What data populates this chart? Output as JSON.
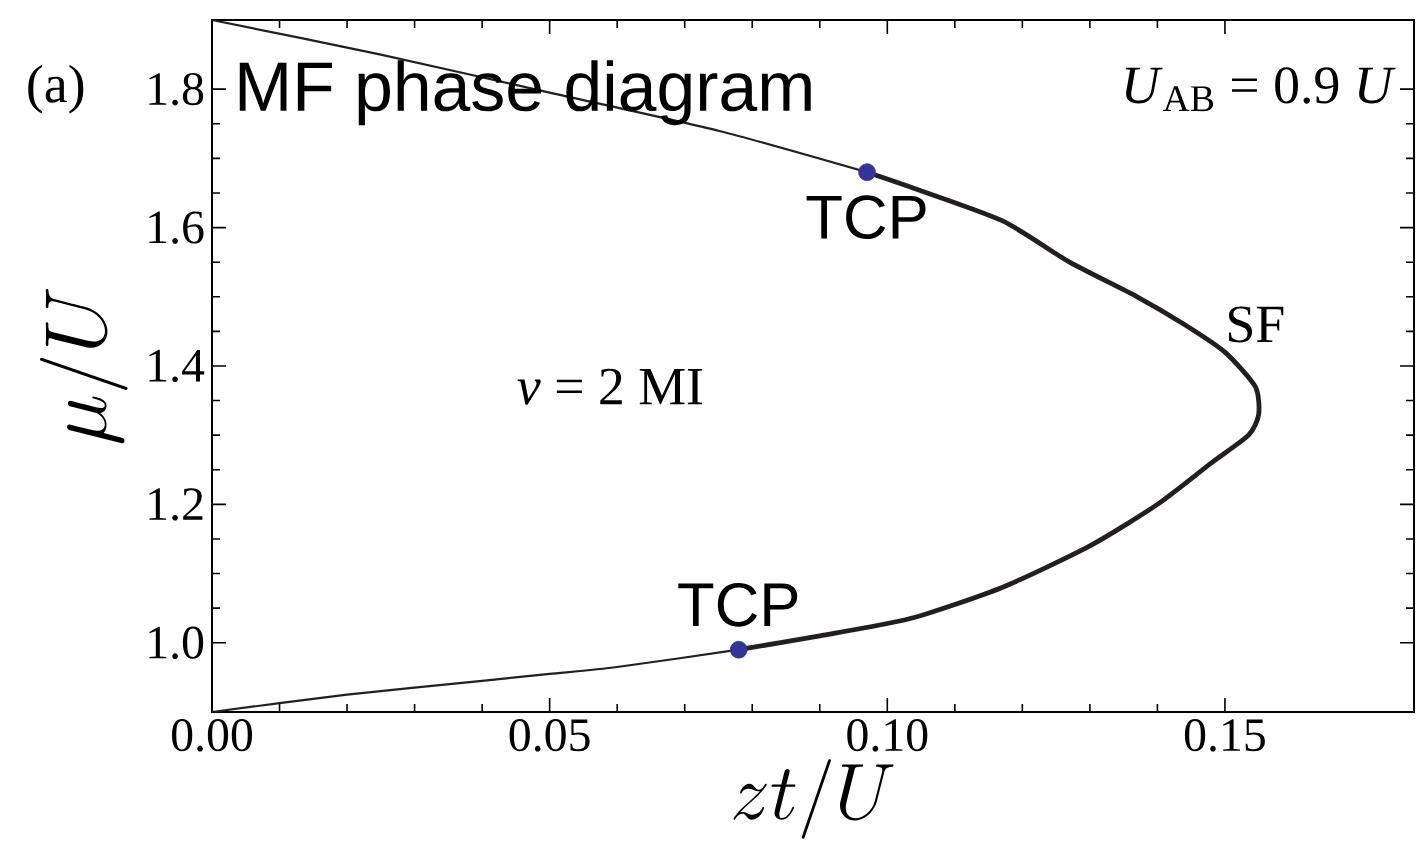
{
  "chart_data": {
    "type": "line",
    "xlabel": "zt/U",
    "ylabel": "\\mu/U",
    "xlim": [
      0,
      0.178
    ],
    "ylim": [
      0.9,
      1.9
    ],
    "xticks": [
      {
        "value": 0,
        "label": "0.00"
      },
      0.05,
      {
        "value": 0.1,
        "label": "0.10"
      },
      0.15
    ],
    "yticks": [
      {
        "value": 1.0,
        "label": "1.0"
      },
      1.2,
      1.4,
      1.6,
      1.8
    ],
    "grid": false,
    "annotations": [
      "(a)",
      "MF phase diagram",
      "*U*$_{AB}$ = 0.9 *U*",
      "SF",
      "*ν* = 2 MI",
      {
        "text": "TCP",
        "x": 0.097,
        "y": 1.68
      },
      {
        "text": "TCP",
        "x": 0.078,
        "y": 0.99
      }
    ],
    "series": [
      {
        "type": "line",
        "color": "#231f20",
        "marker": "none",
        "x": [
          0,
          0.025,
          0.05,
          0.075,
          0.097
        ],
        "values": [
          1.9,
          1.85,
          1.795,
          1.74,
          1.68
        ]
      },
      {
        "type": "line",
        "color": "#231f20",
        "marker": "none",
        "x": [
          0.097,
          0.103,
          0.117,
          0.127,
          0.137,
          0.144,
          0.15,
          0.1545,
          0.155,
          0.1535,
          0.148,
          0.14,
          0.13,
          0.117,
          0.1034,
          0.09,
          0.078
        ],
        "values": [
          1.68,
          1.66,
          1.61,
          1.55,
          1.5,
          1.46,
          1.42,
          1.37,
          1.33,
          1.3,
          1.26,
          1.2,
          1.14,
          1.08,
          1.035,
          1.01,
          0.99
        ]
      },
      {
        "type": "line",
        "color": "#231f20",
        "marker": "none",
        "x": [
          0,
          0.02,
          0.04,
          0.05,
          0.06,
          0.078
        ],
        "values": [
          0.9,
          0.925,
          0.945,
          0.955,
          0.965,
          0.99
        ]
      },
      {
        "type": "scatter",
        "color": "#333399",
        "marker": "circle",
        "x": [
          0.097,
          0.078
        ],
        "values": [
          1.68,
          0.99
        ]
      }
    ]
  }
}
